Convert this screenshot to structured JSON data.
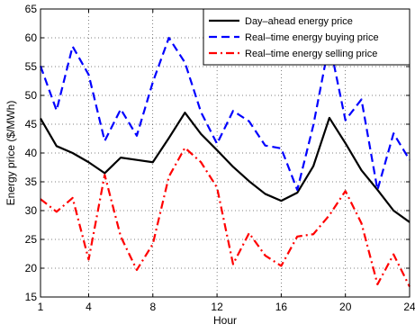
{
  "chart_data": {
    "type": "line",
    "title": "",
    "xlabel": "Hour",
    "ylabel": "Energy price ($/MWh)",
    "xlim": [
      1,
      24
    ],
    "ylim": [
      15,
      65
    ],
    "xticks": [
      1,
      4,
      8,
      12,
      16,
      20,
      24
    ],
    "yticks": [
      15,
      20,
      25,
      30,
      35,
      40,
      45,
      50,
      55,
      60,
      65
    ],
    "grid": true,
    "legend_position": "top-right",
    "x": [
      1,
      2,
      3,
      4,
      5,
      6,
      7,
      8,
      9,
      10,
      11,
      12,
      13,
      14,
      15,
      16,
      17,
      18,
      19,
      20,
      21,
      22,
      23,
      24
    ],
    "series": [
      {
        "name": "Day–ahead energy price",
        "color": "#000000",
        "style": "solid",
        "values": [
          46,
          41.2,
          40,
          38.4,
          36.5,
          39.2,
          38.8,
          38.4,
          42.6,
          47,
          43.3,
          40.5,
          37.6,
          35.1,
          32.9,
          31.7,
          33.1,
          37.7,
          46.1,
          41.7,
          37,
          33.6,
          30,
          28
        ]
      },
      {
        "name": "Real–time energy buying price",
        "color": "#0000ff",
        "style": "dashed",
        "values": [
          55.1,
          47.4,
          58.5,
          53.6,
          42.1,
          47.6,
          43,
          52.3,
          60,
          55.7,
          47.1,
          41.6,
          47.3,
          45.5,
          41.3,
          40.8,
          33.6,
          44.8,
          59.2,
          45.7,
          49.3,
          33.6,
          43.4,
          38.8
        ]
      },
      {
        "name": "Real–time energy selling price",
        "color": "#ff0000",
        "style": "dashdot",
        "values": [
          32,
          29.8,
          32.2,
          21.5,
          36.2,
          25.5,
          19.7,
          24.2,
          35.9,
          40.9,
          38.4,
          34,
          20.7,
          26.1,
          22.2,
          20.4,
          25.5,
          25.9,
          29.2,
          33.4,
          27.8,
          17.2,
          22.4,
          16.8
        ]
      }
    ]
  }
}
